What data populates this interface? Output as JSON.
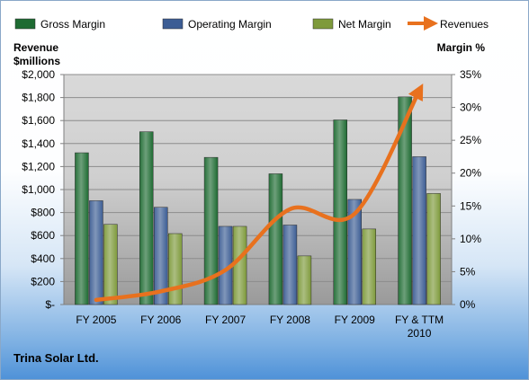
{
  "company": "Trina Solar Ltd.",
  "chart_data": {
    "type": "bar",
    "categories": [
      "FY 2005",
      "FY 2006",
      "FY 2007",
      "FY 2008",
      "FY 2009",
      "FY & TTM\n2010"
    ],
    "left_axis": {
      "title_lines": [
        "Revenue",
        "$millions"
      ],
      "min": 0,
      "max": 2000,
      "step": 200,
      "tick_labels": [
        "$-",
        "$200",
        "$400",
        "$600",
        "$800",
        "$1,000",
        "$1,200",
        "$1,400",
        "$1,600",
        "$1,800",
        "$2,000"
      ]
    },
    "right_axis": {
      "title": "Margin %",
      "min": 0,
      "max": 35,
      "step": 5,
      "tick_labels": [
        "0%",
        "5%",
        "10%",
        "15%",
        "20%",
        "25%",
        "30%",
        "35%"
      ]
    },
    "series": [
      {
        "name": "Gross Margin",
        "kind": "bar",
        "axis": "right",
        "color": "#1e6b32",
        "values": [
          23.1,
          26.3,
          22.4,
          19.9,
          28.1,
          31.6
        ]
      },
      {
        "name": "Operating Margin",
        "kind": "bar",
        "axis": "right",
        "color": "#3c5d94",
        "values": [
          15.8,
          14.8,
          11.9,
          12.1,
          16.0,
          22.5
        ]
      },
      {
        "name": "Net Margin",
        "kind": "bar",
        "axis": "right",
        "color": "#7e9a3b",
        "values": [
          12.2,
          10.8,
          11.9,
          7.4,
          11.5,
          16.9
        ]
      },
      {
        "name": "Revenues",
        "kind": "line",
        "axis": "left",
        "color": "#e8711e",
        "values": [
          40,
          115,
          300,
          830,
          790,
          1860
        ]
      }
    ],
    "grid": true,
    "legend": "top"
  }
}
